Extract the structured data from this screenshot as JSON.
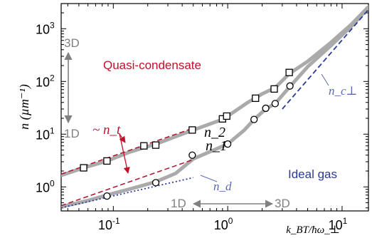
{
  "chart_data": {
    "type": "line",
    "x_scale": "log",
    "y_scale": "log",
    "xlim": [
      0.035,
      17
    ],
    "ylim": [
      0.35,
      3000
    ],
    "xlabel": "k_BT/ħω_⊥",
    "ylabel": "n (µm⁻¹)",
    "x_ticks": [
      {
        "value": 0.1,
        "mantissa": "10",
        "exp": "-1"
      },
      {
        "value": 1,
        "mantissa": "10",
        "exp": "0"
      },
      {
        "value": 10,
        "mantissa": "10",
        "exp": "1"
      }
    ],
    "y_ticks": [
      {
        "value": 1,
        "mantissa": "10",
        "exp": "0"
      },
      {
        "value": 10,
        "mantissa": "10",
        "exp": "1"
      },
      {
        "value": 100,
        "mantissa": "10",
        "exp": "2"
      },
      {
        "value": 1000,
        "mantissa": "10",
        "exp": "3"
      }
    ],
    "grid": false,
    "series": [
      {
        "name": "n_2",
        "marker": "square",
        "color": "#aaaaaa",
        "markers": [
          {
            "x": 0.055,
            "y": 2.3
          },
          {
            "x": 0.088,
            "y": 3.1
          },
          {
            "x": 0.185,
            "y": 6.0
          },
          {
            "x": 0.235,
            "y": 6.2
          },
          {
            "x": 0.49,
            "y": 12
          },
          {
            "x": 0.9,
            "y": 19.5
          },
          {
            "x": 0.98,
            "y": 22
          },
          {
            "x": 1.75,
            "y": 48
          },
          {
            "x": 2.55,
            "y": 72
          },
          {
            "x": 3.45,
            "y": 148
          }
        ],
        "curve": [
          {
            "x": 0.035,
            "y": 1.65
          },
          {
            "x": 0.055,
            "y": 2.3
          },
          {
            "x": 0.088,
            "y": 3.1
          },
          {
            "x": 0.14,
            "y": 4.6
          },
          {
            "x": 0.235,
            "y": 6.5
          },
          {
            "x": 0.35,
            "y": 9.0
          },
          {
            "x": 0.5,
            "y": 12
          },
          {
            "x": 0.9,
            "y": 19
          },
          {
            "x": 1.0,
            "y": 22
          },
          {
            "x": 1.5,
            "y": 40
          },
          {
            "x": 2.0,
            "y": 58
          },
          {
            "x": 2.6,
            "y": 76
          },
          {
            "x": 3.45,
            "y": 140
          },
          {
            "x": 5.0,
            "y": 240
          },
          {
            "x": 8.0,
            "y": 550
          },
          {
            "x": 12.0,
            "y": 1200
          },
          {
            "x": 17.0,
            "y": 2600
          }
        ]
      },
      {
        "name": "n_1",
        "marker": "circle",
        "color": "#aaaaaa",
        "markers": [
          {
            "x": 0.088,
            "y": 0.67
          },
          {
            "x": 0.235,
            "y": 1.2
          },
          {
            "x": 0.49,
            "y": 4.0
          },
          {
            "x": 1.0,
            "y": 6.5
          },
          {
            "x": 1.7,
            "y": 19
          },
          {
            "x": 2.15,
            "y": 31
          },
          {
            "x": 2.6,
            "y": 38
          },
          {
            "x": 3.5,
            "y": 82
          }
        ],
        "curve": [
          {
            "x": 0.035,
            "y": 0.42
          },
          {
            "x": 0.06,
            "y": 0.55
          },
          {
            "x": 0.088,
            "y": 0.7
          },
          {
            "x": 0.15,
            "y": 0.95
          },
          {
            "x": 0.235,
            "y": 1.25
          },
          {
            "x": 0.35,
            "y": 1.8
          },
          {
            "x": 0.5,
            "y": 3.4
          },
          {
            "x": 1.0,
            "y": 6.5
          },
          {
            "x": 1.4,
            "y": 12
          },
          {
            "x": 1.7,
            "y": 19
          },
          {
            "x": 2.15,
            "y": 30
          },
          {
            "x": 2.6,
            "y": 38
          },
          {
            "x": 3.5,
            "y": 80
          },
          {
            "x": 5.0,
            "y": 190
          },
          {
            "x": 8.0,
            "y": 480
          },
          {
            "x": 12.0,
            "y": 1100
          },
          {
            "x": 17.0,
            "y": 2500
          }
        ]
      },
      {
        "name": "n_t",
        "style": "dashed",
        "color": "#b0102a",
        "upper": [
          {
            "x": 0.035,
            "y": 1.75
          },
          {
            "x": 0.5,
            "y": 13
          }
        ],
        "lower": [
          {
            "x": 0.035,
            "y": 0.44
          },
          {
            "x": 0.5,
            "y": 3.3
          }
        ]
      },
      {
        "name": "n_d",
        "style": "dotted",
        "color": "#2a3a9a",
        "points": [
          {
            "x": 0.035,
            "y": 0.4
          },
          {
            "x": 0.5,
            "y": 1.5
          }
        ]
      },
      {
        "name": "n_c⊥",
        "style": "dashed",
        "color": "#2a3a9a",
        "points": [
          {
            "x": 3.0,
            "y": 30
          },
          {
            "x": 17.0,
            "y": 2300
          }
        ]
      }
    ],
    "annotations": {
      "quasi": "Quasi-condensate",
      "ideal": "Ideal gas",
      "n2": "n_2",
      "n1": "n_1",
      "nt": "~ n_t",
      "nd": "n_d",
      "ncp": "n_c⊥",
      "dim3D_top": "3D",
      "dim1D_left": "1D",
      "dim1D_bottom": "1D",
      "dim3D_bottom": "3D"
    },
    "colors": {
      "quasi": "#c0102a",
      "ideal": "#2a3a9a",
      "curve": "#aaaaaa",
      "arrow": "#808080",
      "nt_arrow": "#c0102a"
    }
  }
}
